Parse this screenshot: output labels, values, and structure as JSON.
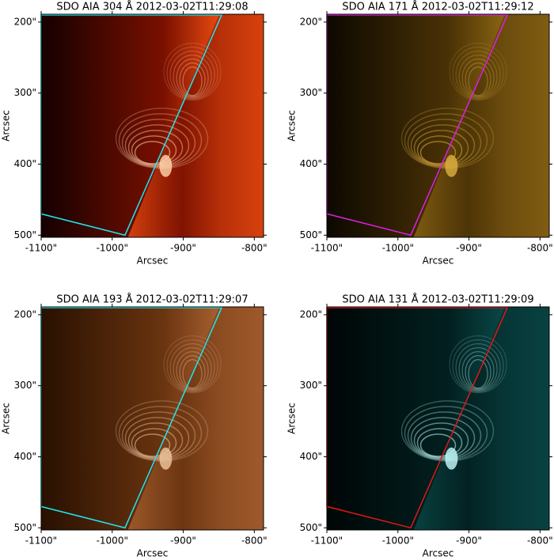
{
  "chart_data": [
    {
      "type": "image",
      "title": "SDO AIA 304 Å 2012-03-02T11:29:08",
      "xlabel": "Arcsec",
      "ylabel": "Arcsec",
      "xlim": [
        -1100,
        -787
      ],
      "ylim": [
        503,
        189
      ],
      "xticks": [
        {
          "value": -1100,
          "label": "-1100\""
        },
        {
          "value": -1000,
          "label": "-1000\""
        },
        {
          "value": -900,
          "label": "-900\""
        },
        {
          "value": -800,
          "label": "-800\""
        }
      ],
      "yticks": [
        {
          "value": 200,
          "label": "200\""
        },
        {
          "value": 300,
          "label": "300\""
        },
        {
          "value": 400,
          "label": "400\""
        },
        {
          "value": 500,
          "label": "500\""
        }
      ],
      "image_colors": [
        "#140000",
        "#7a1000",
        "#e84a10",
        "#ffd8b0"
      ],
      "region": {
        "color": "#1ee8f0",
        "x": [
          -1100,
          -1100,
          -982,
          -846
        ],
        "y": [
          190,
          470,
          500,
          190
        ]
      }
    },
    {
      "type": "image",
      "title": "SDO AIA 171 Å 2012-03-02T11:29:12",
      "xlabel": "Arcsec",
      "ylabel": "Arcsec",
      "xlim": [
        -1100,
        -787
      ],
      "ylim": [
        503,
        189
      ],
      "xticks": [
        {
          "value": -1100,
          "label": "-1100\""
        },
        {
          "value": -1000,
          "label": "-1000\""
        },
        {
          "value": -900,
          "label": "-900\""
        },
        {
          "value": -800,
          "label": "-800\""
        }
      ],
      "yticks": [
        {
          "value": 200,
          "label": "200\""
        },
        {
          "value": 300,
          "label": "300\""
        },
        {
          "value": 400,
          "label": "400\""
        },
        {
          "value": 500,
          "label": "500\""
        }
      ],
      "image_colors": [
        "#0c0800",
        "#4a3206",
        "#8a6414",
        "#e0b040"
      ],
      "region": {
        "color": "#e020e0",
        "x": [
          -1100,
          -1100,
          -982,
          -846
        ],
        "y": [
          190,
          470,
          500,
          190
        ]
      }
    },
    {
      "type": "image",
      "title": "SDO AIA 193 Å 2012-03-02T11:29:07",
      "xlabel": "Arcsec",
      "ylabel": "Arcsec",
      "xlim": [
        -1100,
        -787
      ],
      "ylim": [
        503,
        189
      ],
      "xticks": [
        {
          "value": -1100,
          "label": "-1100\""
        },
        {
          "value": -1000,
          "label": "-1000\""
        },
        {
          "value": -900,
          "label": "-900\""
        },
        {
          "value": -800,
          "label": "-800\""
        }
      ],
      "yticks": [
        {
          "value": 200,
          "label": "200\""
        },
        {
          "value": 300,
          "label": "300\""
        },
        {
          "value": 400,
          "label": "400\""
        },
        {
          "value": 500,
          "label": "500\""
        }
      ],
      "image_colors": [
        "#281000",
        "#6a3410",
        "#a86030",
        "#f0c8a0"
      ],
      "region": {
        "color": "#1ee8f0",
        "x": [
          -1100,
          -1100,
          -982,
          -846
        ],
        "y": [
          190,
          470,
          500,
          190
        ]
      }
    },
    {
      "type": "image",
      "title": "SDO AIA 131 Å 2012-03-02T11:29:09",
      "xlabel": "Arcsec",
      "ylabel": "Arcsec",
      "xlim": [
        -1100,
        -787
      ],
      "ylim": [
        503,
        189
      ],
      "xticks": [
        {
          "value": -1100,
          "label": "-1100\""
        },
        {
          "value": -1000,
          "label": "-1000\""
        },
        {
          "value": -900,
          "label": "-900\""
        },
        {
          "value": -800,
          "label": "-800\""
        }
      ],
      "yticks": [
        {
          "value": 200,
          "label": "200\""
        },
        {
          "value": 300,
          "label": "300\""
        },
        {
          "value": 400,
          "label": "400\""
        },
        {
          "value": 500,
          "label": "500\""
        }
      ],
      "image_colors": [
        "#000606",
        "#022020",
        "#0a4848",
        "#c8ffff"
      ],
      "region": {
        "color": "#e01818",
        "x": [
          -1100,
          -1100,
          -982,
          -846
        ],
        "y": [
          190,
          470,
          500,
          190
        ]
      }
    }
  ]
}
